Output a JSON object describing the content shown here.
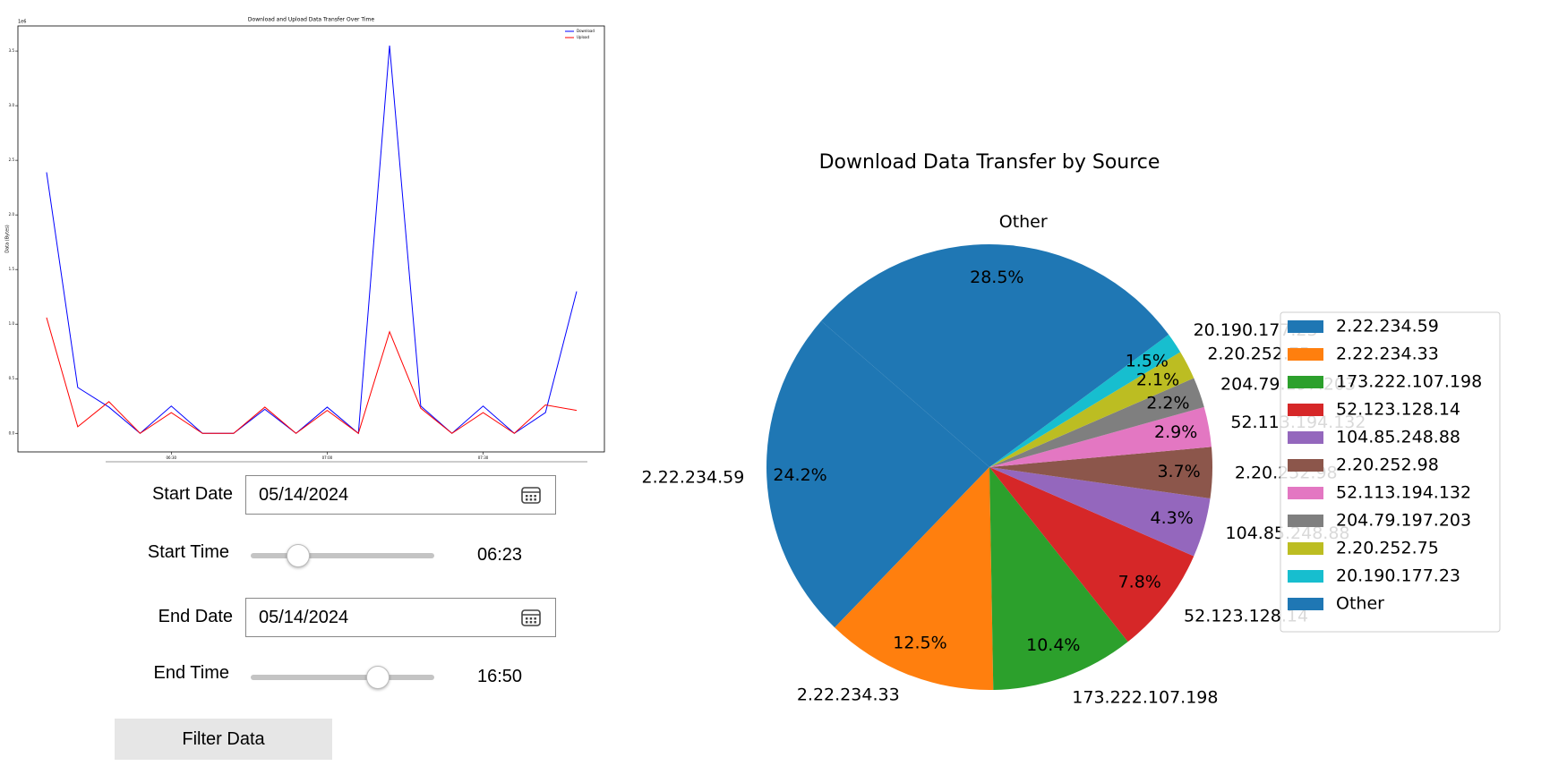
{
  "chart_data": [
    {
      "type": "line",
      "title": "Download and Upload Data Transfer Over Time",
      "ylabel": "Data (Bytes)",
      "offset_label": "1e6",
      "categories": [
        null,
        null,
        null,
        null,
        "06:30",
        null,
        null,
        null,
        null,
        "07:00",
        null,
        null,
        null,
        null,
        "07:30",
        null,
        null,
        null
      ],
      "series": [
        {
          "name": "Download",
          "color": "#0000ff",
          "values": [
            2.39,
            0.42,
            0.24,
            0,
            0.25,
            0,
            0,
            0.22,
            0,
            0.24,
            0,
            3.55,
            0.25,
            0,
            0.25,
            0,
            0.19,
            1.3
          ]
        },
        {
          "name": "Upload",
          "color": "#ff0000",
          "values": [
            1.06,
            0.06,
            0.29,
            0,
            0.19,
            0,
            0,
            0.24,
            0,
            0.21,
            0,
            0.93,
            0.23,
            0,
            0.19,
            0,
            0.26,
            0.21
          ]
        }
      ],
      "ylim": [
        -0.17,
        3.73
      ],
      "yticks": [
        {
          "value": 0,
          "label": "0.0"
        },
        0.5,
        {
          "value": 1,
          "label": "1.0"
        },
        1.5,
        {
          "value": 2,
          "label": "2.0"
        },
        2.5,
        {
          "value": 3,
          "label": "3.0"
        },
        3.5
      ],
      "legend": "upper right"
    },
    {
      "type": "pie",
      "title": "Download Data Transfer by Source",
      "categories": [
        "2.22.234.59",
        "2.22.234.33",
        "173.222.107.198",
        "52.123.128.14",
        "104.85.248.88",
        "2.20.252.98",
        "52.113.194.132",
        "204.79.197.203",
        "2.20.252.75",
        "20.190.177.23",
        "Other"
      ],
      "values": [
        24.2,
        12.5,
        10.4,
        7.8,
        4.3,
        3.7,
        2.9,
        2.2,
        2.1,
        1.5,
        28.5
      ],
      "value_labels": [
        "24.2%",
        "12.5%",
        "10.4%",
        "7.8%",
        "4.3%",
        "3.7%",
        "2.9%",
        "2.2%",
        "2.1%",
        "1.5%",
        "28.5%"
      ],
      "colors": [
        "#1f77b4",
        "#ff7f0e",
        "#2ca02c",
        "#d62728",
        "#9467bd",
        "#8c564b",
        "#e377c2",
        "#7f7f7f",
        "#bcbd22",
        "#17becf",
        "#1f77b4"
      ],
      "legend": "center right"
    }
  ],
  "controls": {
    "start_date": {
      "label": "Start Date",
      "value": "05/14/2024"
    },
    "start_time": {
      "label": "Start Time",
      "value": "06:23"
    },
    "end_date": {
      "label": "End Date",
      "value": "05/14/2024"
    },
    "end_time": {
      "label": "End Time",
      "value": "16:50"
    },
    "filter_button": "Filter Data"
  }
}
